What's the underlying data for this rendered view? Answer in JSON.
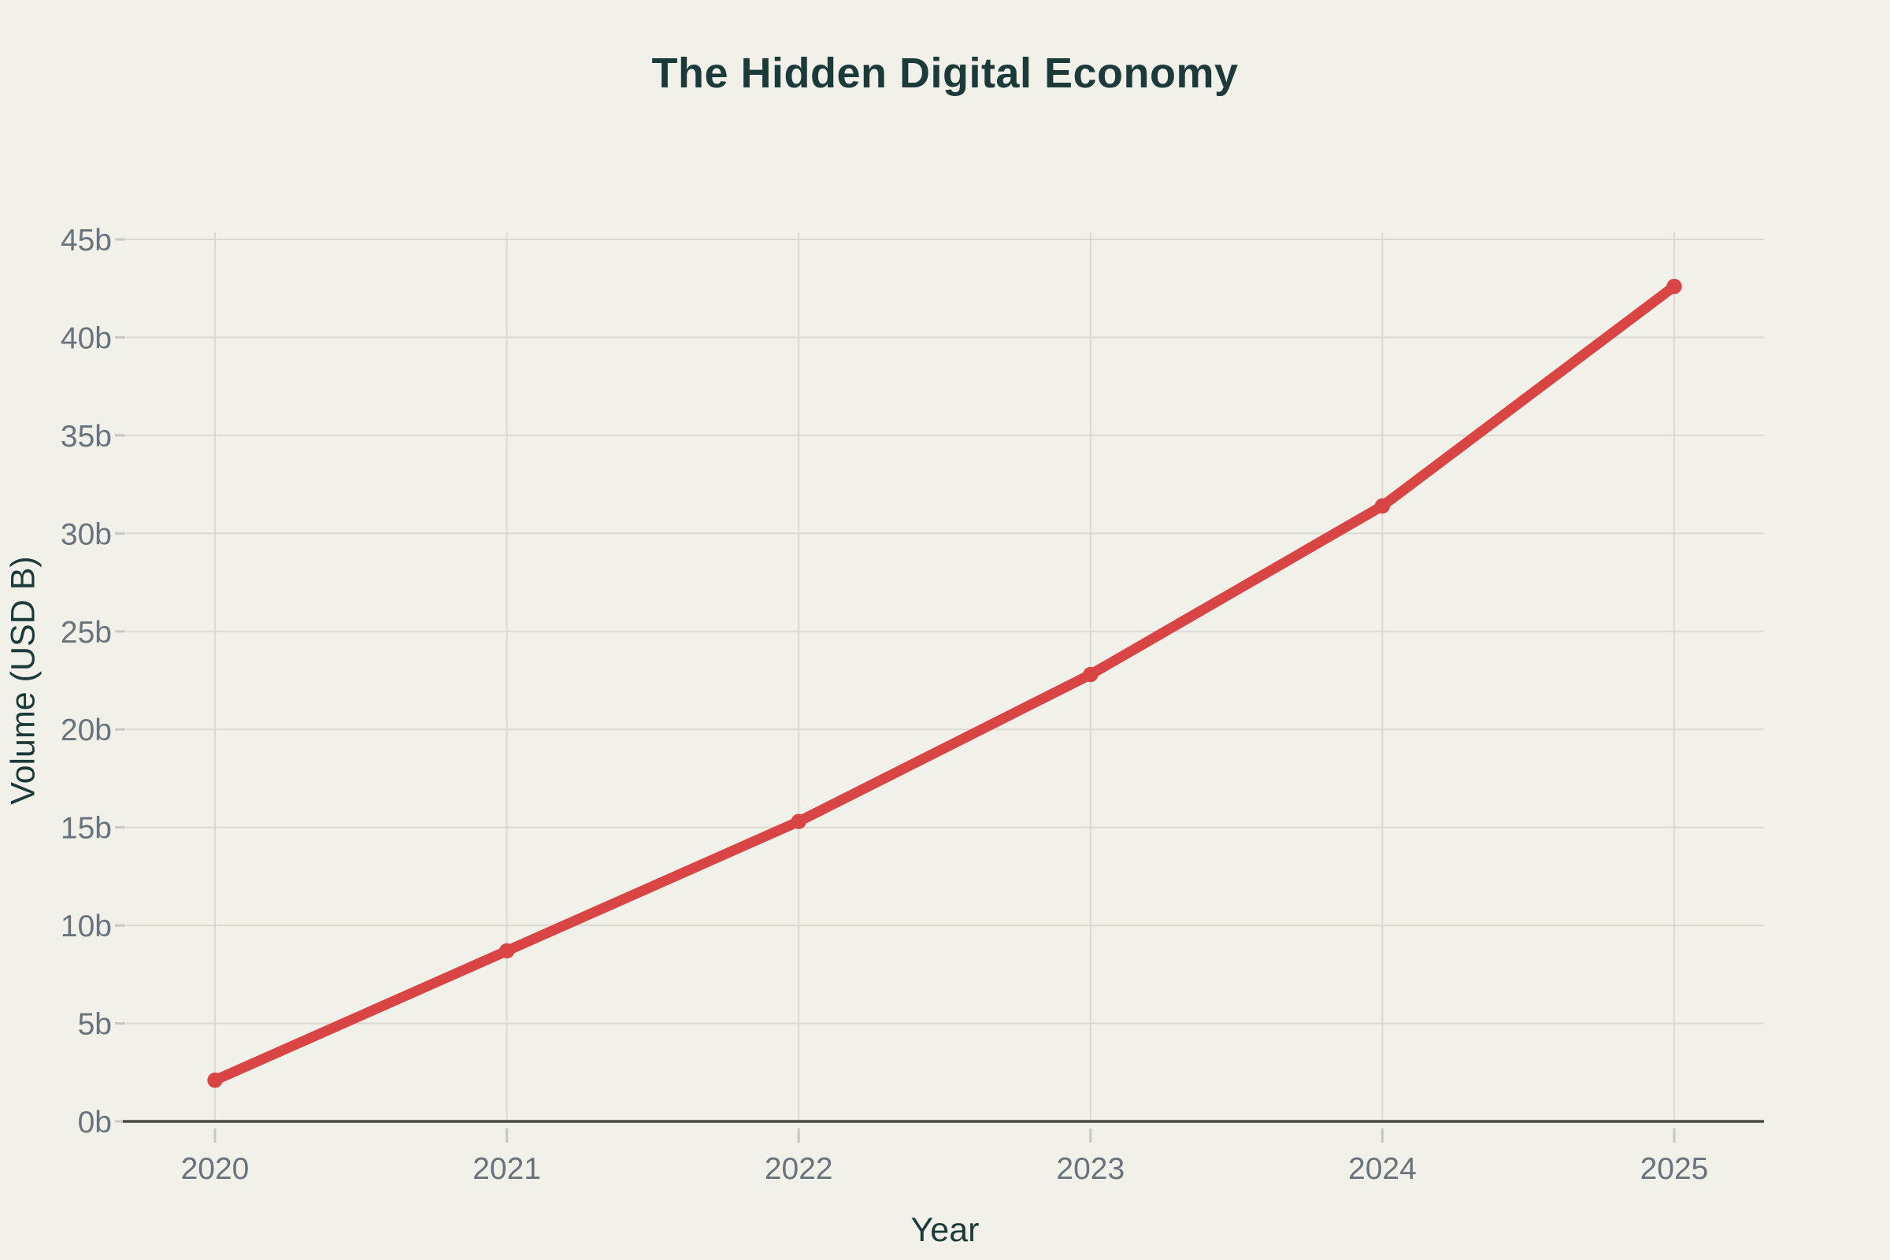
{
  "chart_data": {
    "type": "line",
    "title": "The Hidden Digital Economy",
    "xlabel": "Year",
    "ylabel": "Volume (USD B)",
    "categories": [
      "2020",
      "2021",
      "2022",
      "2023",
      "2024",
      "2025"
    ],
    "series": [
      {
        "name": "Volume",
        "values": [
          2.1,
          8.7,
          15.3,
          22.8,
          31.4,
          42.6
        ]
      }
    ],
    "y_ticks": [
      0,
      5,
      10,
      15,
      20,
      25,
      30,
      35,
      40,
      45
    ],
    "y_tick_labels": [
      "0b",
      "5b",
      "10b",
      "15b",
      "20b",
      "25b",
      "30b",
      "35b",
      "40b",
      "45b"
    ],
    "ylim": [
      0,
      45
    ],
    "grid": true,
    "legend": false,
    "colors": {
      "series": "#d94545",
      "background": "#f1f1ea",
      "gridline": "#dbdad1",
      "tick_dash": "#c8c8bf",
      "axis_line": "#474744",
      "tick_label": "#68737d",
      "heading_text": "#1d3a3a"
    }
  }
}
